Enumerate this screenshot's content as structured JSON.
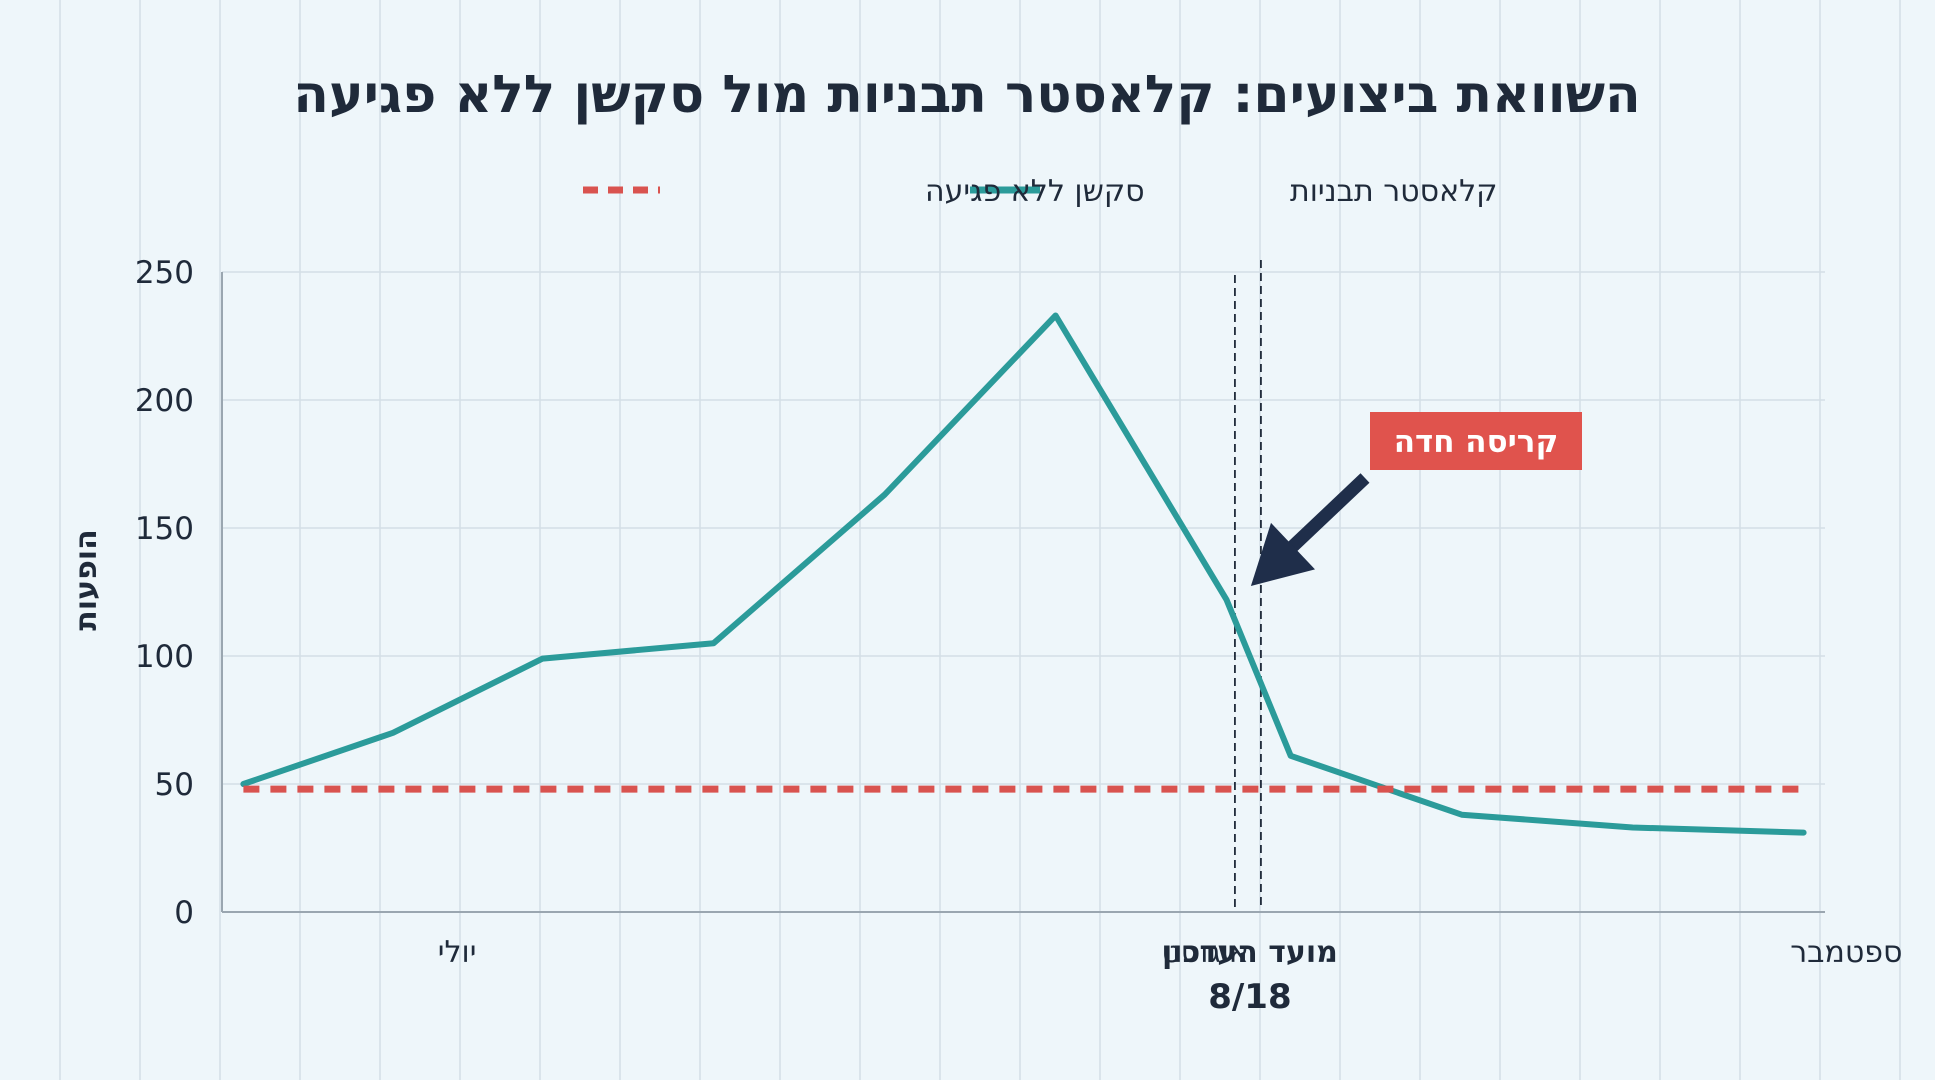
{
  "colors": {
    "background": "#eef6fa",
    "grid": "#d3dee6",
    "axis": "#9aa6b0",
    "text": "#1f2a3a",
    "line": "#2b9b9a",
    "baseline": "#d9534f",
    "callout_bg": "#e0534d",
    "callout_text": "#ffffff",
    "arrow": "#1f2e4a",
    "marker": "#1f2a3a"
  },
  "chart_data": {
    "type": "line",
    "title": "השוואת ביצועים: קלאסטר תבניות מול סקשן ללא פגיעה",
    "ylabel": "הופעות",
    "xlabel": "",
    "ylim": [
      0,
      250
    ],
    "yticks": [
      "0",
      "50",
      "100",
      "150",
      "200",
      "250"
    ],
    "grid": true,
    "legend_position": "top-center",
    "month_labels": [
      {
        "x": 11,
        "label": "יולי"
      },
      {
        "x": 46,
        "label": "אוגוסט"
      },
      {
        "x": 76,
        "label": "ספטמבר"
      }
    ],
    "event_marker": {
      "x": 48,
      "label_line1": "מועד העדכון",
      "label_line2": "8/18"
    },
    "annotation": {
      "text": "קריסה חדה",
      "x": 48,
      "y": 125
    },
    "series": [
      {
        "name": "קלאסטר תבניות",
        "style": "solid",
        "points": [
          [
            1,
            50
          ],
          [
            8,
            70
          ],
          [
            15,
            99
          ],
          [
            23,
            105
          ],
          [
            31,
            163
          ],
          [
            39,
            233
          ],
          [
            47,
            122
          ],
          [
            50,
            61
          ],
          [
            58,
            38
          ],
          [
            66,
            33
          ],
          [
            74,
            31
          ]
        ]
      },
      {
        "name": "סקשן ללא פגיעה",
        "style": "dashed",
        "points": [
          [
            1,
            48
          ],
          [
            74,
            48
          ]
        ]
      }
    ]
  }
}
